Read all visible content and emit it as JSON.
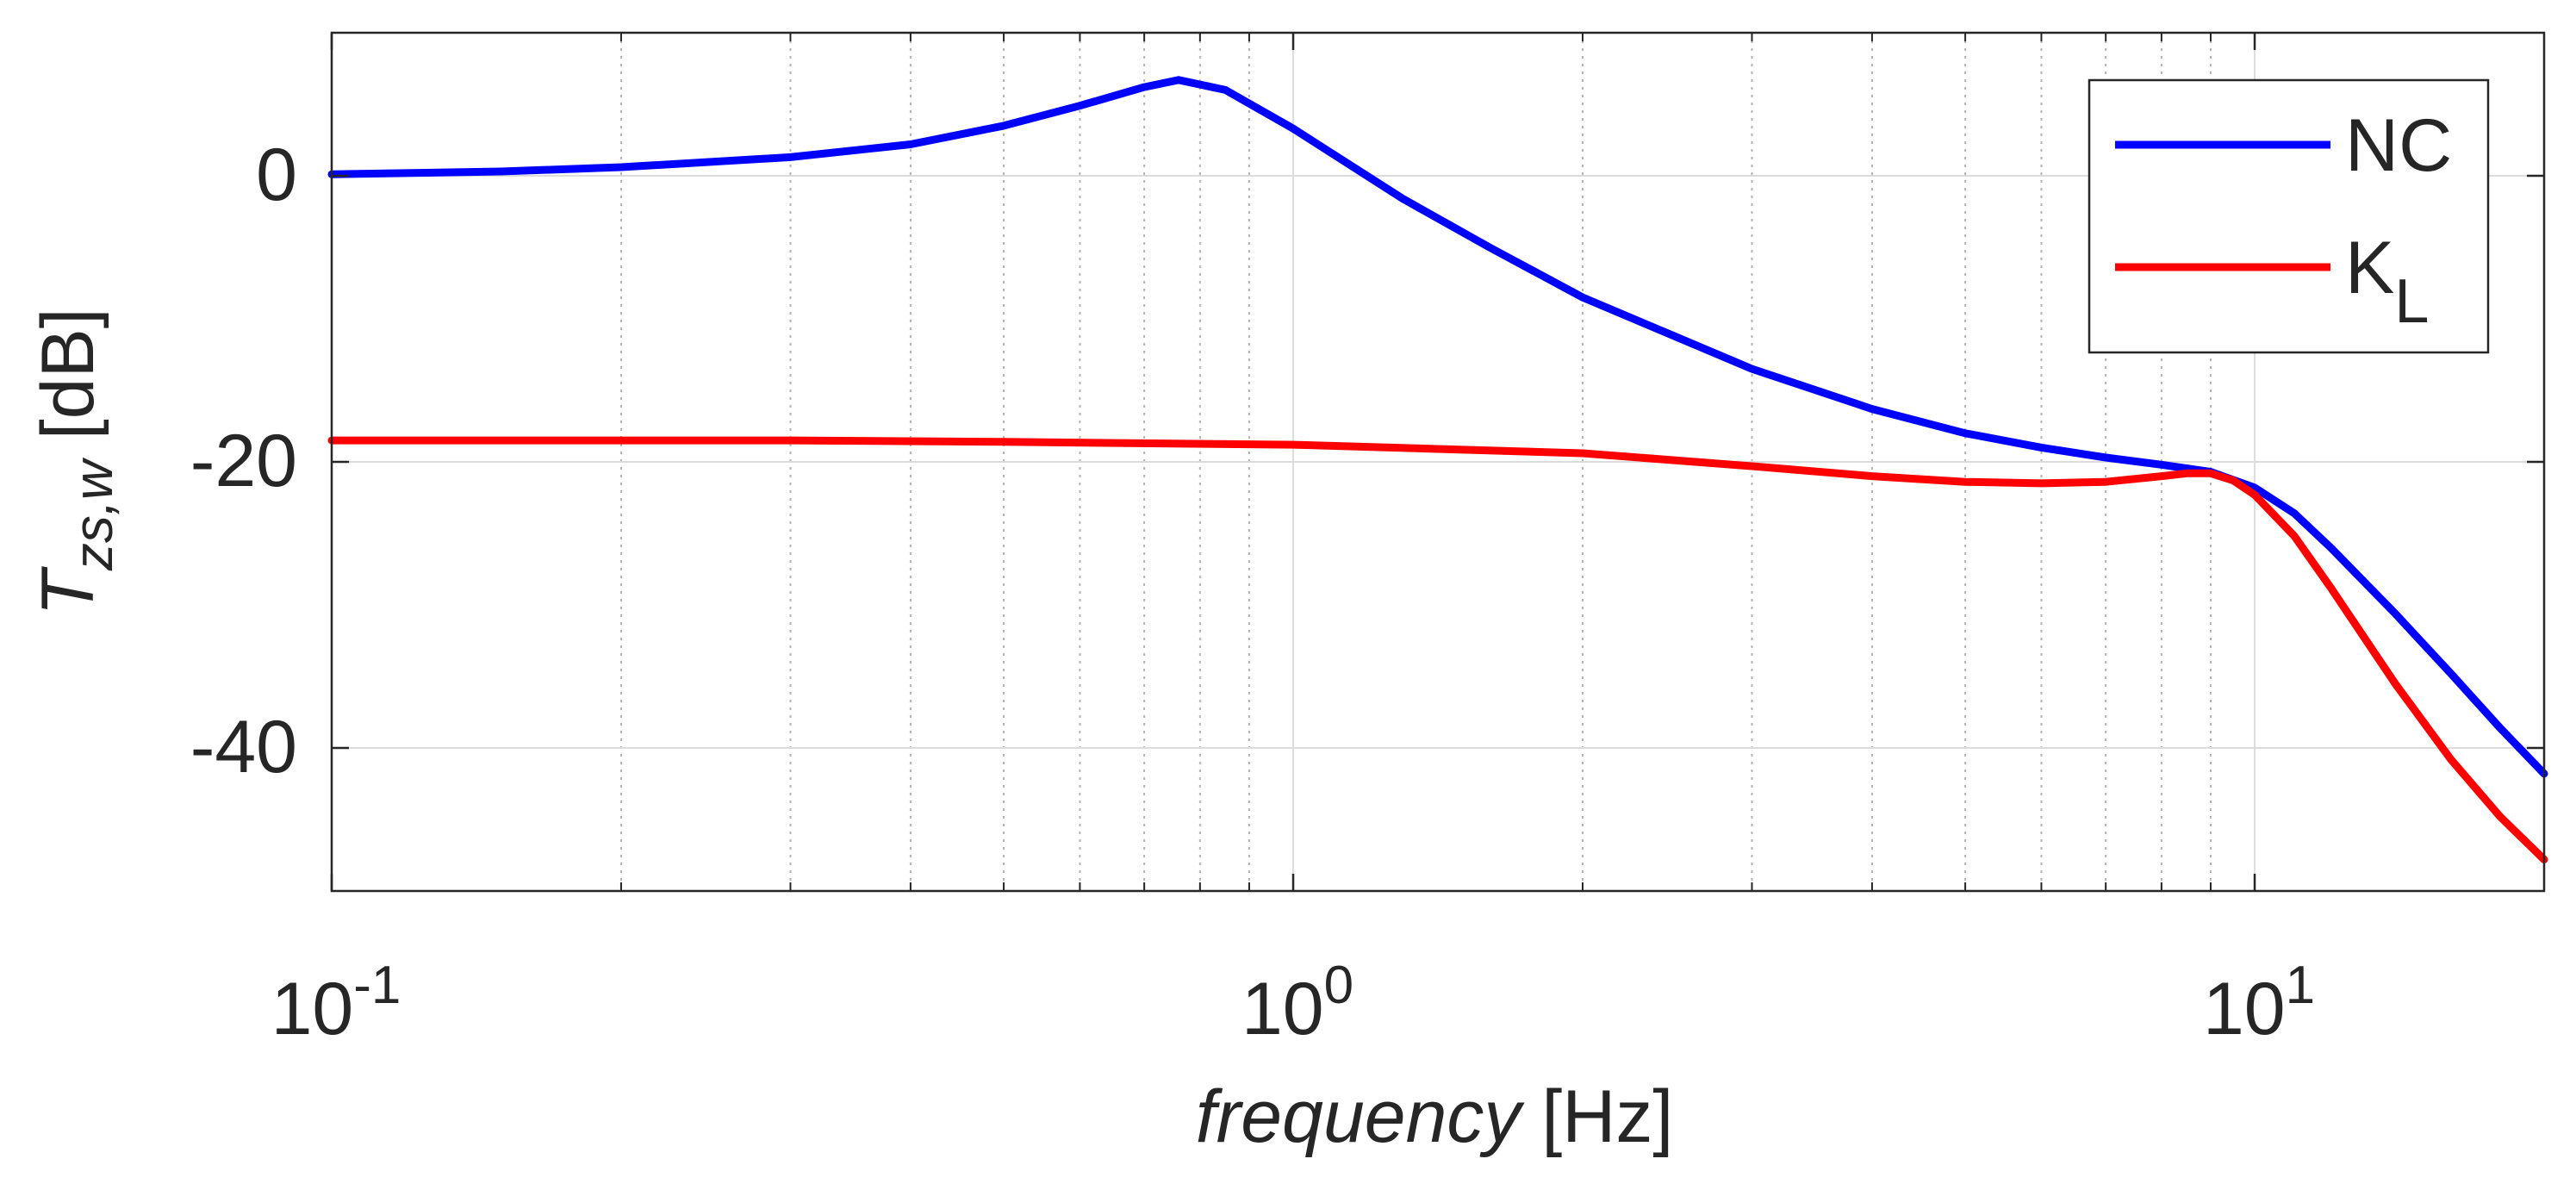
{
  "chart_data": {
    "type": "line",
    "xscale": "log",
    "xlim": [
      0.1,
      20
    ],
    "ylim": [
      -50,
      10
    ],
    "grid": true,
    "legend_position": "top-right",
    "xlabel": {
      "italic": "frequency",
      "unit": " [Hz]"
    },
    "ylabel": {
      "main": "T",
      "sub": "zs,w",
      "unit": " [dB]"
    },
    "x_ticks": [
      {
        "value": 0.1,
        "base": "10",
        "exp": "-1"
      },
      {
        "value": 1,
        "base": "10",
        "exp": "0"
      },
      {
        "value": 10,
        "base": "10",
        "exp": "1"
      }
    ],
    "y_ticks": [
      {
        "value": 0,
        "label": "0"
      },
      {
        "value": -20,
        "label": "-20"
      },
      {
        "value": -40,
        "label": "-40"
      }
    ],
    "series": [
      {
        "name": "NC",
        "legend_main": "NC",
        "legend_sub": "",
        "color": "#0000ff",
        "x": [
          0.1,
          0.15,
          0.2,
          0.3,
          0.4,
          0.5,
          0.6,
          0.7,
          0.76,
          0.85,
          1.0,
          1.3,
          1.6,
          2.0,
          3.0,
          4.0,
          5.0,
          6.0,
          7.0,
          8.0,
          9.0,
          10.0,
          11.0,
          12.0,
          14.0,
          16.0,
          18.0,
          20.0
        ],
        "values": [
          0.1,
          0.3,
          0.6,
          1.3,
          2.2,
          3.5,
          4.9,
          6.2,
          6.7,
          6.0,
          3.3,
          -1.6,
          -5.0,
          -8.5,
          -13.5,
          -16.3,
          -18.0,
          -19.0,
          -19.7,
          -20.2,
          -20.7,
          -21.8,
          -23.6,
          -26.0,
          -30.6,
          -34.8,
          -38.6,
          -41.8
        ]
      },
      {
        "name": "K_L",
        "legend_main": "K",
        "legend_sub": "L",
        "color": "#ff0000",
        "x": [
          0.1,
          0.3,
          0.5,
          1.0,
          2.0,
          3.0,
          4.0,
          5.0,
          6.0,
          7.0,
          8.0,
          8.5,
          9.0,
          9.5,
          10.0,
          11.0,
          12.0,
          14.0,
          16.0,
          18.0,
          20.0
        ],
        "values": [
          -18.5,
          -18.5,
          -18.6,
          -18.8,
          -19.4,
          -20.3,
          -21.0,
          -21.4,
          -21.5,
          -21.4,
          -21.0,
          -20.8,
          -20.8,
          -21.3,
          -22.3,
          -25.2,
          -28.8,
          -35.5,
          -40.8,
          -44.8,
          -47.8
        ]
      }
    ]
  }
}
